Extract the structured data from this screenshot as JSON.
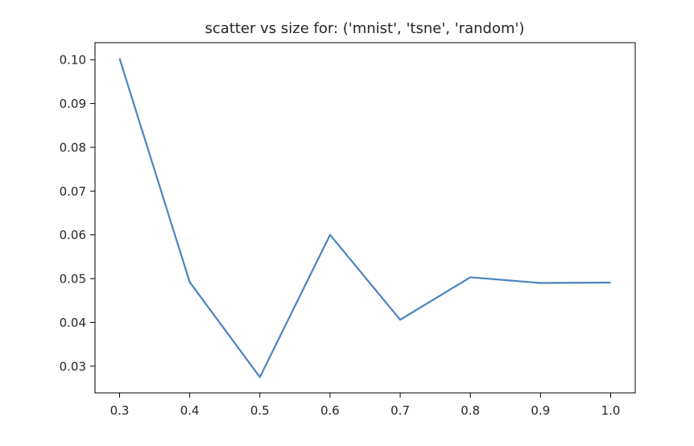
{
  "chart_data": {
    "type": "line",
    "title": "scatter vs size for: ('mnist', 'tsne', 'random')",
    "xlabel": "",
    "ylabel": "",
    "x": [
      0.3,
      0.4,
      0.5,
      0.6,
      0.7,
      0.8,
      0.9,
      1.0
    ],
    "series": [
      {
        "values": [
          0.1003,
          0.0492,
          0.0275,
          0.06,
          0.0406,
          0.0503,
          0.049,
          0.0491
        ],
        "color": "#4c84bf"
      }
    ],
    "x_ticks": [
      "0.3",
      "0.4",
      "0.5",
      "0.6",
      "0.7",
      "0.8",
      "0.9",
      "1.0"
    ],
    "y_ticks": [
      "0.03",
      "0.04",
      "0.05",
      "0.06",
      "0.07",
      "0.08",
      "0.09",
      "0.10"
    ],
    "xlim": [
      0.265,
      1.035
    ],
    "ylim": [
      0.0239,
      0.1039
    ],
    "grid": false,
    "legend": "none"
  }
}
